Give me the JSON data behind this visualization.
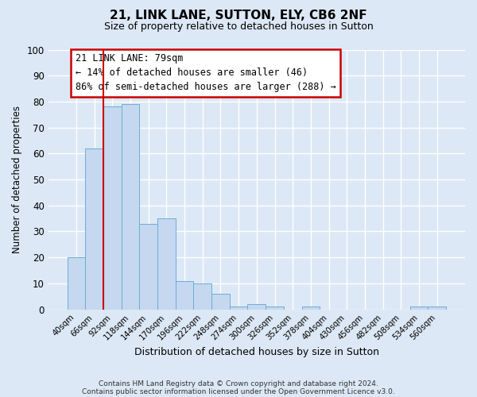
{
  "title": "21, LINK LANE, SUTTON, ELY, CB6 2NF",
  "subtitle": "Size of property relative to detached houses in Sutton",
  "xlabel": "Distribution of detached houses by size in Sutton",
  "ylabel": "Number of detached properties",
  "bar_labels": [
    "40sqm",
    "66sqm",
    "92sqm",
    "118sqm",
    "144sqm",
    "170sqm",
    "196sqm",
    "222sqm",
    "248sqm",
    "274sqm",
    "300sqm",
    "326sqm",
    "352sqm",
    "378sqm",
    "404sqm",
    "430sqm",
    "456sqm",
    "482sqm",
    "508sqm",
    "534sqm",
    "560sqm"
  ],
  "bar_values": [
    20,
    62,
    78,
    79,
    33,
    35,
    11,
    10,
    6,
    1,
    2,
    1,
    0,
    1,
    0,
    0,
    0,
    0,
    0,
    1,
    1
  ],
  "bar_color": "#c5d8ef",
  "bar_edge_color": "#6baed6",
  "ylim": [
    0,
    100
  ],
  "yticks": [
    0,
    10,
    20,
    30,
    40,
    50,
    60,
    70,
    80,
    90,
    100
  ],
  "property_label": "21 LINK LANE: 79sqm",
  "annotation_line1": "← 14% of detached houses are smaller (46)",
  "annotation_line2": "86% of semi-detached houses are larger (288) →",
  "red_line_after_bar": 1,
  "background_color": "#dce8f5",
  "grid_color": "#ffffff",
  "footer_line1": "Contains HM Land Registry data © Crown copyright and database right 2024.",
  "footer_line2": "Contains public sector information licensed under the Open Government Licence v3.0."
}
